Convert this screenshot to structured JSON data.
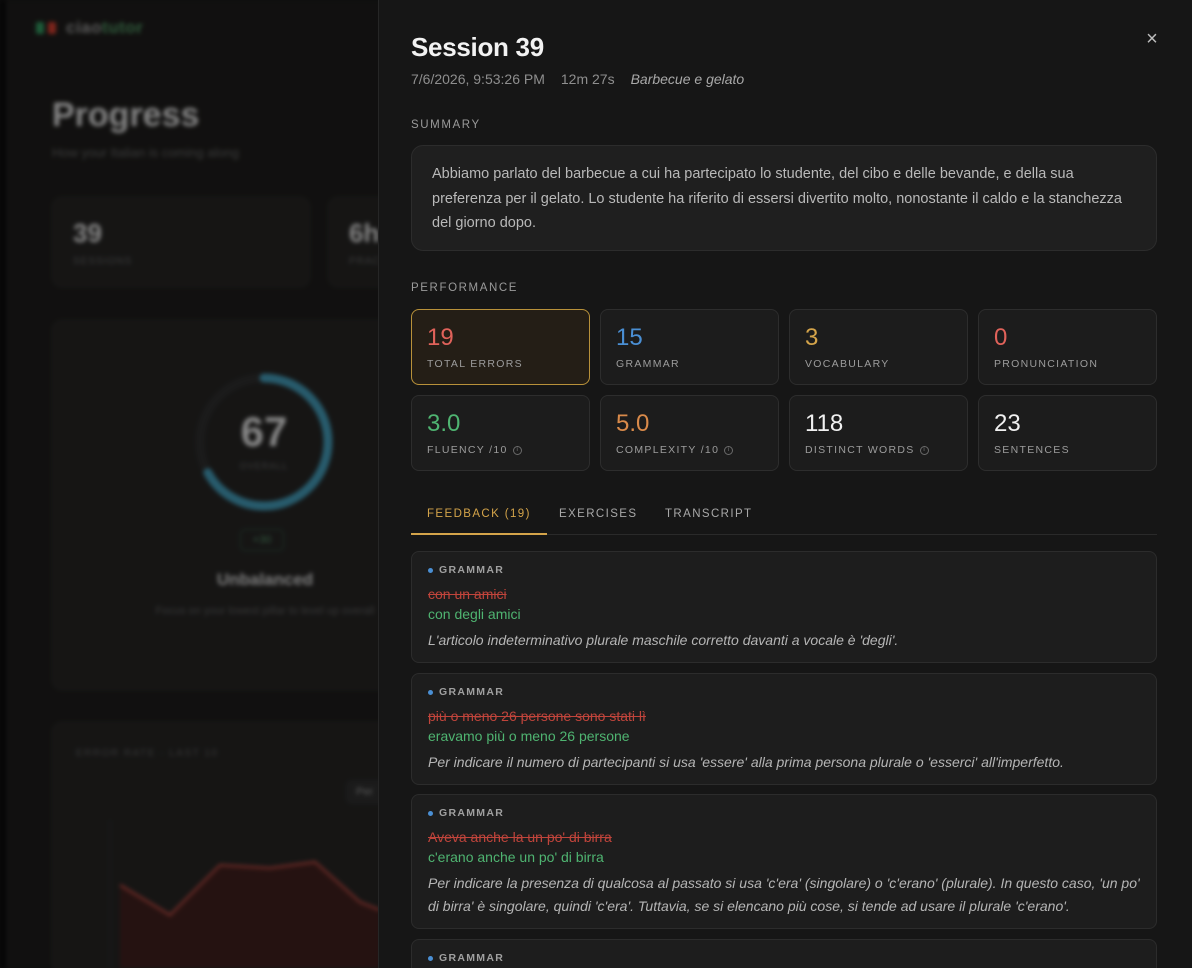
{
  "background": {
    "logo": {
      "prefix": "ciao",
      "suffix": "tutor"
    },
    "title": "Progress",
    "subtitle": "How your Italian is coming along",
    "stats": [
      {
        "value": "39",
        "label": "SESSIONS"
      },
      {
        "value": "6h",
        "label": "PRACTICE"
      }
    ],
    "overall": {
      "value": "67",
      "label": "OVERALL",
      "fraction": 0.67
    },
    "change_chip": "+30",
    "balance_title": "Unbalanced",
    "balance_sub": "Focus on your lowest pillar to level up overall",
    "chart_title": "ERROR RATE · LAST 10",
    "chart_pill": "Per"
  },
  "session": {
    "title": "Session 39",
    "datetime": "7/6/2026, 9:53:26 PM",
    "duration": "12m 27s",
    "topic": "Barbecue e gelato",
    "close_glyph": "×"
  },
  "summary": {
    "label": "SUMMARY",
    "text": "Abbiamo parlato del barbecue a cui ha partecipato lo studente, del cibo e delle bevande, e della sua preferenza per il gelato. Lo studente ha riferito di essersi divertito molto, nonostante il caldo e la stanchezza del giorno dopo."
  },
  "performance": {
    "label": "PERFORMANCE",
    "metrics": [
      {
        "value": "19",
        "label": "TOTAL ERRORS",
        "color": "#e0625a"
      },
      {
        "value": "15",
        "label": "GRAMMAR",
        "color": "#4a8fd4"
      },
      {
        "value": "3",
        "label": "VOCABULARY",
        "color": "#d4a44a"
      },
      {
        "value": "0",
        "label": "PRONUNCIATION",
        "color": "#e0625a"
      },
      {
        "value": "3.0",
        "label": "FLUENCY /10",
        "color": "#4fb471"
      },
      {
        "value": "5.0",
        "label": "COMPLEXITY /10",
        "color": "#d98a4a"
      },
      {
        "value": "118",
        "label": "DISTINCT WORDS",
        "color": "#f0f0f0"
      },
      {
        "value": "23",
        "label": "SENTENCES",
        "color": "#f0f0f0"
      }
    ]
  },
  "tabs": [
    {
      "label": "FEEDBACK (19)"
    },
    {
      "label": "EXERCISES"
    },
    {
      "label": "TRANSCRIPT"
    }
  ],
  "feedback": [
    {
      "category": "GRAMMAR",
      "wrong": "con un amici",
      "right": "con degli amici",
      "explanation": "L'articolo indeterminativo plurale maschile corretto davanti a vocale è 'degli'."
    },
    {
      "category": "GRAMMAR",
      "wrong": "più o meno 26 persone sono stati lì",
      "right": "eravamo più o meno 26 persone",
      "explanation": "Per indicare il numero di partecipanti si usa 'essere' alla prima persona plurale o 'esserci' all'imperfetto."
    },
    {
      "category": "GRAMMAR",
      "wrong": "Aveva anche la un po' di birra",
      "right": "c'erano anche un po' di birra",
      "explanation": "Per indicare la presenza di qualcosa al passato si usa 'c'era' (singolare) o 'c'erano' (plurale). In questo caso, 'un po' di birra' è singolare, quindi 'c'era'. Tuttavia, se si elencano più cose, si tende ad usare il plurale 'c'erano'."
    },
    {
      "category": "GRAMMAR",
      "wrong": "",
      "right": "",
      "explanation": ""
    }
  ]
}
